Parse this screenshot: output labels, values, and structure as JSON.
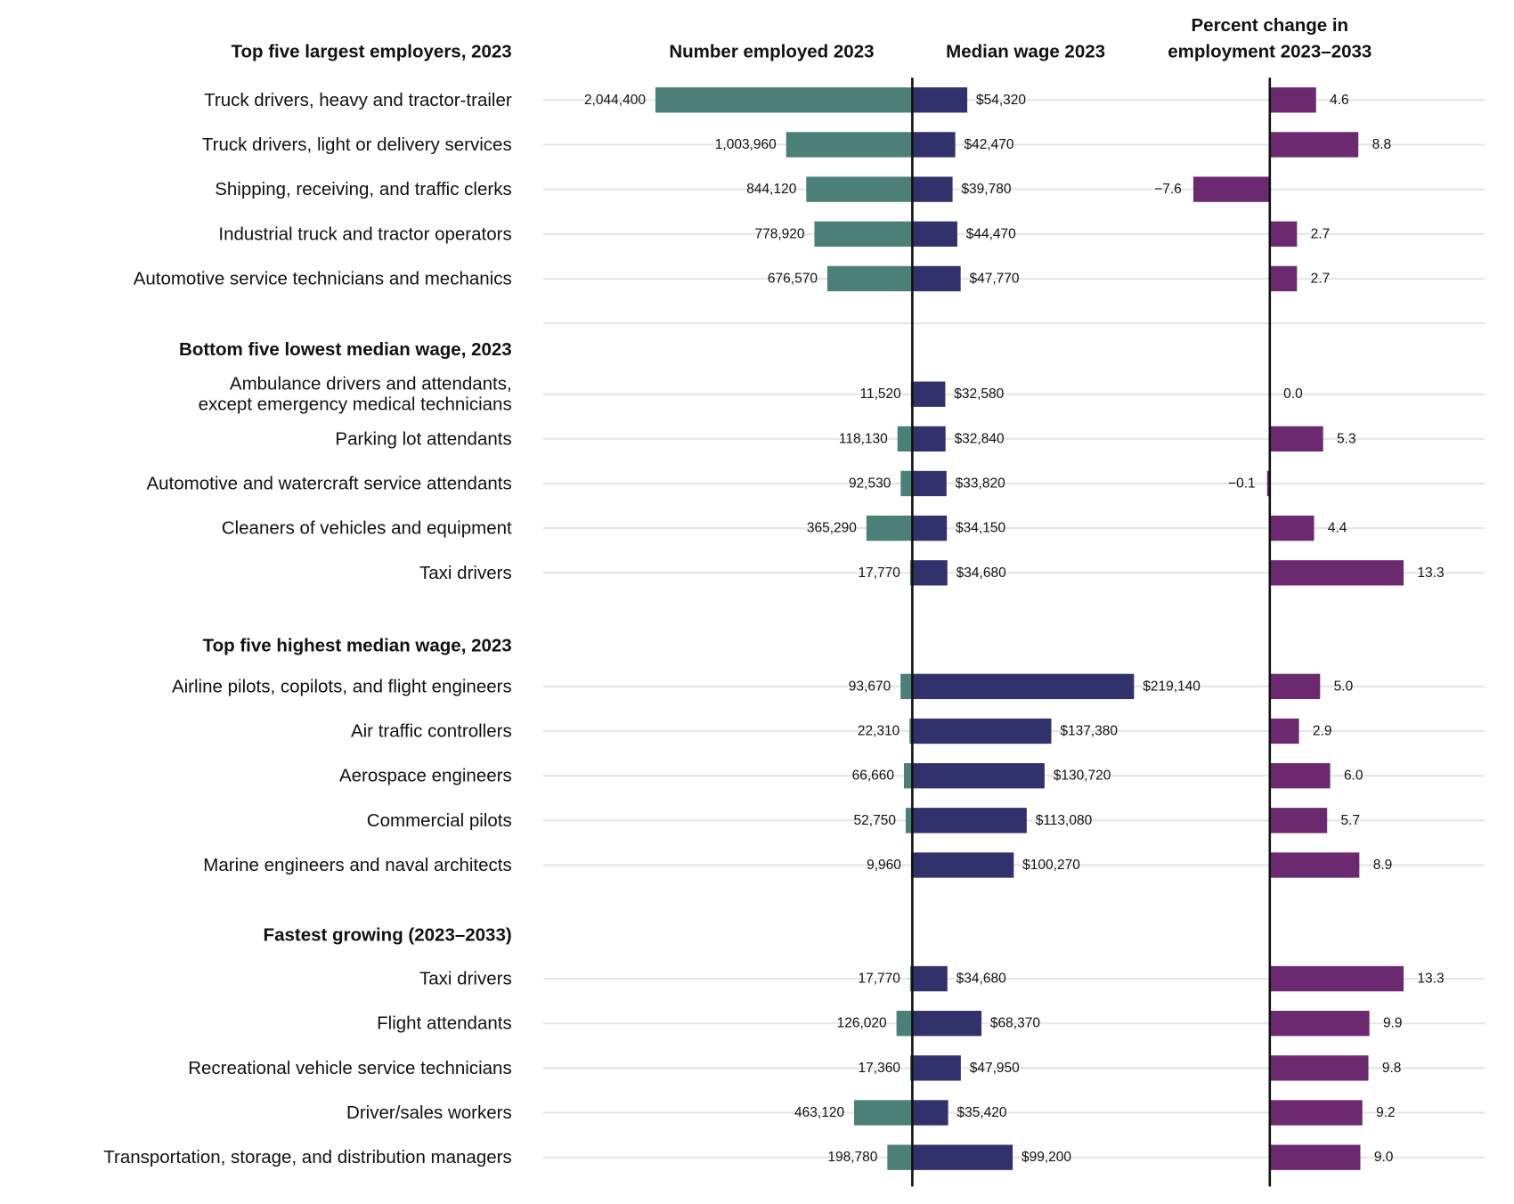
{
  "chart_data": {
    "type": "bar",
    "column_headers": {
      "employed": [
        "Number employed 2023"
      ],
      "wage": [
        "Median wage 2023"
      ],
      "change": [
        "Percent change in",
        "employment 2023–2033"
      ]
    },
    "colors": {
      "employed": "#4b7f78",
      "wage": "#31316c",
      "change": "#6b2a70",
      "gridline": "#e6e6e6",
      "axis": "#111111"
    },
    "groups": [
      {
        "title": "Top five largest employers, 2023",
        "rows": [
          {
            "label": [
              "Truck drivers, heavy and tractor-trailer"
            ],
            "employed": 2044400,
            "employed_label": "2,044,400",
            "wage": 54320,
            "wage_label": "$54,320",
            "change": 4.6,
            "change_label": "4.6"
          },
          {
            "label": [
              "Truck drivers, light or delivery services"
            ],
            "employed": 1003960,
            "employed_label": "1,003,960",
            "wage": 42470,
            "wage_label": "$42,470",
            "change": 8.8,
            "change_label": "8.8"
          },
          {
            "label": [
              "Shipping, receiving, and traffic clerks"
            ],
            "employed": 844120,
            "employed_label": "844,120",
            "wage": 39780,
            "wage_label": "$39,780",
            "change": -7.6,
            "change_label": "−7.6"
          },
          {
            "label": [
              "Industrial truck and tractor operators"
            ],
            "employed": 778920,
            "employed_label": "778,920",
            "wage": 44470,
            "wage_label": "$44,470",
            "change": 2.7,
            "change_label": "2.7"
          },
          {
            "label": [
              "Automotive service technicians and mechanics"
            ],
            "employed": 676570,
            "employed_label": "676,570",
            "wage": 47770,
            "wage_label": "$47,770",
            "change": 2.7,
            "change_label": "2.7"
          }
        ]
      },
      {
        "title": "Bottom five lowest median wage, 2023",
        "rows": [
          {
            "label": [
              "Ambulance drivers and attendants,",
              "except emergency medical technicians"
            ],
            "employed": 11520,
            "employed_label": "11,520",
            "wage": 32580,
            "wage_label": "$32,580",
            "change": 0.0,
            "change_label": "0.0"
          },
          {
            "label": [
              "Parking lot attendants"
            ],
            "employed": 118130,
            "employed_label": "118,130",
            "wage": 32840,
            "wage_label": "$32,840",
            "change": 5.3,
            "change_label": "5.3"
          },
          {
            "label": [
              "Automotive and watercraft service attendants"
            ],
            "employed": 92530,
            "employed_label": "92,530",
            "wage": 33820,
            "wage_label": "$33,820",
            "change": -0.1,
            "change_label": "−0.1"
          },
          {
            "label": [
              "Cleaners of vehicles and equipment"
            ],
            "employed": 365290,
            "employed_label": "365,290",
            "wage": 34150,
            "wage_label": "$34,150",
            "change": 4.4,
            "change_label": "4.4"
          },
          {
            "label": [
              "Taxi drivers"
            ],
            "employed": 17770,
            "employed_label": "17,770",
            "wage": 34680,
            "wage_label": "$34,680",
            "change": 13.3,
            "change_label": "13.3"
          }
        ]
      },
      {
        "title": "Top five highest median wage, 2023",
        "rows": [
          {
            "label": [
              "Airline pilots, copilots, and flight engineers"
            ],
            "employed": 93670,
            "employed_label": "93,670",
            "wage": 219140,
            "wage_label": "$219,140",
            "change": 5.0,
            "change_label": "5.0"
          },
          {
            "label": [
              "Air traffic controllers"
            ],
            "employed": 22310,
            "employed_label": "22,310",
            "wage": 137380,
            "wage_label": "$137,380",
            "change": 2.9,
            "change_label": "2.9"
          },
          {
            "label": [
              "Aerospace engineers"
            ],
            "employed": 66660,
            "employed_label": "66,660",
            "wage": 130720,
            "wage_label": "$130,720",
            "change": 6.0,
            "change_label": "6.0"
          },
          {
            "label": [
              "Commercial pilots"
            ],
            "employed": 52750,
            "employed_label": "52,750",
            "wage": 113080,
            "wage_label": "$113,080",
            "change": 5.7,
            "change_label": "5.7"
          },
          {
            "label": [
              "Marine engineers and naval architects"
            ],
            "employed": 9960,
            "employed_label": "9,960",
            "wage": 100270,
            "wage_label": "$100,270",
            "change": 8.9,
            "change_label": "8.9"
          }
        ]
      },
      {
        "title": "Fastest growing (2023–2033)",
        "rows": [
          {
            "label": [
              "Taxi drivers"
            ],
            "employed": 17770,
            "employed_label": "17,770",
            "wage": 34680,
            "wage_label": "$34,680",
            "change": 13.3,
            "change_label": "13.3"
          },
          {
            "label": [
              "Flight attendants"
            ],
            "employed": 126020,
            "employed_label": "126,020",
            "wage": 68370,
            "wage_label": "$68,370",
            "change": 9.9,
            "change_label": "9.9"
          },
          {
            "label": [
              "Recreational vehicle service technicians"
            ],
            "employed": 17360,
            "employed_label": "17,360",
            "wage": 47950,
            "wage_label": "$47,950",
            "change": 9.8,
            "change_label": "9.8"
          },
          {
            "label": [
              "Driver/sales workers"
            ],
            "employed": 463120,
            "employed_label": "463,120",
            "wage": 35420,
            "wage_label": "$35,420",
            "change": 9.2,
            "change_label": "9.2"
          },
          {
            "label": [
              "Transportation, storage, and distribution managers"
            ],
            "employed": 198780,
            "employed_label": "198,780",
            "wage": 99200,
            "wage_label": "$99,200",
            "change": 9.0,
            "change_label": "9.0"
          }
        ]
      }
    ]
  }
}
